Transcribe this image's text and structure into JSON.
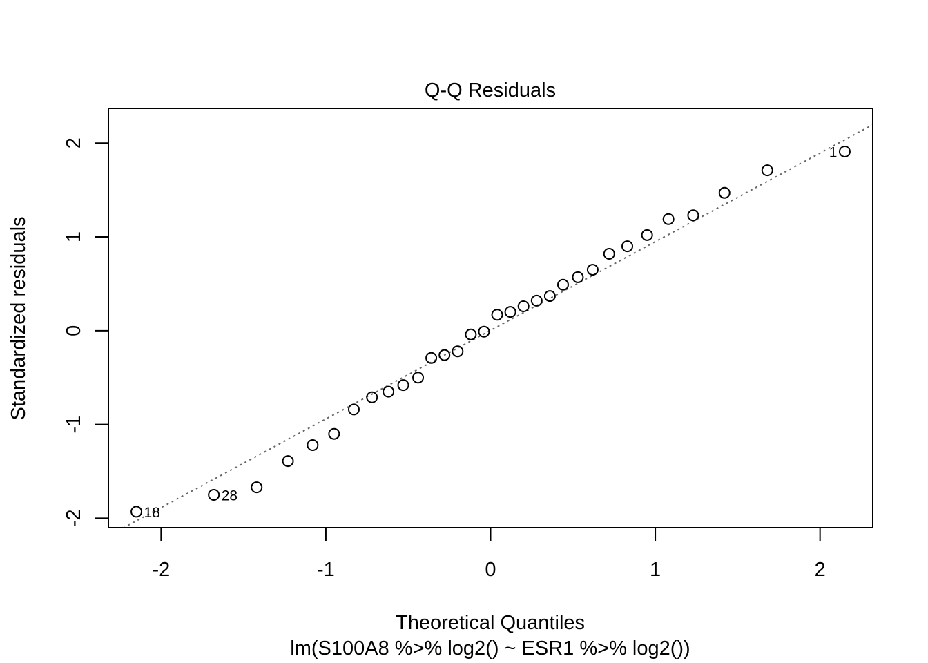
{
  "chart_data": {
    "type": "scatter",
    "title": "Q-Q Residuals",
    "xlabel": "Theoretical Quantiles",
    "subtitle": "lm(S100A8 %>% log2() ~ ESR1 %>% log2())",
    "ylabel": "Standardized residuals",
    "xlim": [
      -2.32,
      2.32
    ],
    "ylim": [
      -2.1,
      2.37
    ],
    "x_ticks": [
      -2,
      -1,
      0,
      1,
      2
    ],
    "y_ticks": [
      -2,
      -1,
      0,
      1,
      2
    ],
    "x_tick_labels": [
      "-2",
      "-1",
      "0",
      "1",
      "2"
    ],
    "y_tick_labels": [
      "-2",
      "-1",
      "0",
      "1",
      "2"
    ],
    "grid": false,
    "reference_line": {
      "style": "dotted",
      "color": "#666666",
      "intercept": 0.004,
      "slope": 0.945
    },
    "points": [
      {
        "x": -2.15,
        "y": -1.93
      },
      {
        "x": -1.68,
        "y": -1.75
      },
      {
        "x": -1.42,
        "y": -1.67
      },
      {
        "x": -1.23,
        "y": -1.39
      },
      {
        "x": -1.08,
        "y": -1.22
      },
      {
        "x": -0.95,
        "y": -1.1
      },
      {
        "x": -0.83,
        "y": -0.84
      },
      {
        "x": -0.72,
        "y": -0.71
      },
      {
        "x": -0.62,
        "y": -0.65
      },
      {
        "x": -0.53,
        "y": -0.58
      },
      {
        "x": -0.44,
        "y": -0.5
      },
      {
        "x": -0.36,
        "y": -0.29
      },
      {
        "x": -0.28,
        "y": -0.26
      },
      {
        "x": -0.2,
        "y": -0.22
      },
      {
        "x": -0.12,
        "y": -0.04
      },
      {
        "x": -0.04,
        "y": -0.01
      },
      {
        "x": 0.04,
        "y": 0.17
      },
      {
        "x": 0.12,
        "y": 0.2
      },
      {
        "x": 0.2,
        "y": 0.26
      },
      {
        "x": 0.28,
        "y": 0.32
      },
      {
        "x": 0.36,
        "y": 0.37
      },
      {
        "x": 0.44,
        "y": 0.49
      },
      {
        "x": 0.53,
        "y": 0.57
      },
      {
        "x": 0.62,
        "y": 0.65
      },
      {
        "x": 0.72,
        "y": 0.82
      },
      {
        "x": 0.83,
        "y": 0.9
      },
      {
        "x": 0.95,
        "y": 1.02
      },
      {
        "x": 1.08,
        "y": 1.19
      },
      {
        "x": 1.23,
        "y": 1.23
      },
      {
        "x": 1.42,
        "y": 1.47
      },
      {
        "x": 1.68,
        "y": 1.71
      },
      {
        "x": 2.15,
        "y": 1.91
      }
    ],
    "annotations": [
      {
        "text": "18",
        "x": -2.15,
        "y": -1.93,
        "side": "right"
      },
      {
        "text": "28",
        "x": -1.68,
        "y": -1.75,
        "side": "right"
      },
      {
        "text": "1",
        "x": 2.15,
        "y": 1.91,
        "side": "left"
      }
    ]
  }
}
